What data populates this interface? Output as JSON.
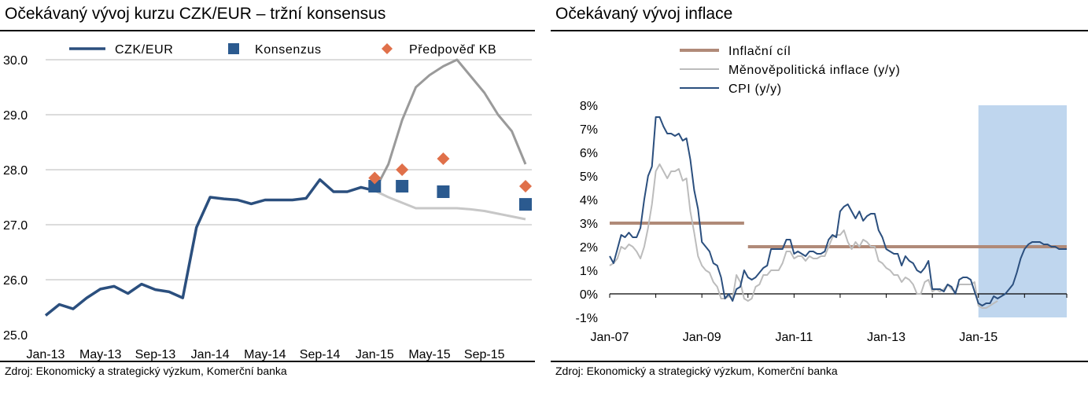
{
  "chart_data": [
    {
      "type": "line",
      "title": "Očekávaný vývoj kurzu CZK/EUR – tržní konsensus",
      "source": "Zdroj: Ekonomický a strategický výzkum, Komerční banka",
      "x_tick_labels": [
        "Jan-13",
        "May-13",
        "Sep-13",
        "Jan-14",
        "May-14",
        "Sep-14",
        "Jan-15",
        "May-15",
        "Sep-15"
      ],
      "x_tick_months": [
        "2013-01",
        "2013-05",
        "2013-09",
        "2014-01",
        "2014-05",
        "2014-09",
        "2015-01",
        "2015-05",
        "2015-09"
      ],
      "xlim": [
        "2013-01",
        "2015-12"
      ],
      "ylim": [
        25.0,
        30.0
      ],
      "y_ticks": [
        "25.0",
        "26.0",
        "27.0",
        "28.0",
        "29.0",
        "30.0"
      ],
      "grid": "horizontal",
      "legend_position": "top",
      "series": [
        {
          "name": "CZK/EUR",
          "type": "line",
          "color": "#2b4f7e",
          "x": [
            "2013-01",
            "2013-02",
            "2013-03",
            "2013-04",
            "2013-05",
            "2013-06",
            "2013-07",
            "2013-08",
            "2013-09",
            "2013-10",
            "2013-11",
            "2013-12",
            "2014-01",
            "2014-02",
            "2014-03",
            "2014-04",
            "2014-05",
            "2014-06",
            "2014-07",
            "2014-08",
            "2014-09",
            "2014-10",
            "2014-11",
            "2014-12",
            "2015-01"
          ],
          "y": [
            25.35,
            25.55,
            25.47,
            25.67,
            25.83,
            25.88,
            25.75,
            25.92,
            25.82,
            25.78,
            25.67,
            26.95,
            27.5,
            27.47,
            27.45,
            27.38,
            27.45,
            27.45,
            27.45,
            27.48,
            27.82,
            27.6,
            27.6,
            27.68,
            27.62
          ]
        },
        {
          "name": "",
          "type": "line",
          "color": "#9a9a9a",
          "x": [
            "2015-01",
            "2015-02",
            "2015-03",
            "2015-04",
            "2015-05",
            "2015-06",
            "2015-07",
            "2015-08",
            "2015-09",
            "2015-10",
            "2015-11",
            "2015-12"
          ],
          "y": [
            27.62,
            28.1,
            28.9,
            29.5,
            29.72,
            29.88,
            30.0,
            29.7,
            29.4,
            29.0,
            28.7,
            28.1
          ]
        },
        {
          "name": "",
          "type": "line",
          "color": "#c7c7c7",
          "x": [
            "2015-01",
            "2015-02",
            "2015-03",
            "2015-04",
            "2015-05",
            "2015-06",
            "2015-07",
            "2015-08",
            "2015-09",
            "2015-10",
            "2015-11",
            "2015-12"
          ],
          "y": [
            27.62,
            27.5,
            27.4,
            27.3,
            27.3,
            27.3,
            27.3,
            27.28,
            27.25,
            27.2,
            27.15,
            27.1
          ]
        },
        {
          "name": "Konsenzus",
          "type": "scatter",
          "marker": "square",
          "color": "#2b5a8f",
          "x": [
            "2015-01",
            "2015-03",
            "2015-06",
            "2015-12"
          ],
          "y": [
            27.7,
            27.7,
            27.6,
            27.37
          ]
        },
        {
          "name": "Předpověď KB",
          "type": "scatter",
          "marker": "diamond",
          "color": "#e0704a",
          "x": [
            "2015-01",
            "2015-03",
            "2015-06",
            "2015-12"
          ],
          "y": [
            27.85,
            28.0,
            28.2,
            27.7
          ]
        }
      ]
    },
    {
      "type": "line",
      "title": "Očekávaný vývoj inflace",
      "source": "Zdroj: Ekonomický a strategický výzkum, Komerční banka",
      "x_tick_labels": [
        "Jan-07",
        "Jan-09",
        "Jan-11",
        "Jan-13",
        "Jan-15"
      ],
      "x_tick_months": [
        "2007-01",
        "2009-01",
        "2011-01",
        "2013-01",
        "2015-01"
      ],
      "xlim": [
        "2007-01",
        "2016-12"
      ],
      "ylim": [
        -1,
        8
      ],
      "y_ticks": [
        "-1%",
        "0%",
        "1%",
        "2%",
        "3%",
        "4%",
        "5%",
        "6%",
        "7%",
        "8%"
      ],
      "shaded_region": {
        "from": "2015-01",
        "to": "2016-12",
        "color": "#bfd6ee"
      },
      "legend_position": "top-left",
      "series": [
        {
          "name": "Inflační cíl",
          "type": "step",
          "color": "#b08a78",
          "segments": [
            {
              "x": [
                "2007-01",
                "2009-12"
              ],
              "y": [
                3,
                3
              ]
            },
            {
              "x": [
                "2010-01",
                "2016-12"
              ],
              "y": [
                2,
                2
              ]
            }
          ]
        },
        {
          "name": "Měnověpolitická inflace (y/y)",
          "type": "line",
          "color": "#bcbcbc",
          "x": [
            "2007-01",
            "2007-02",
            "2007-03",
            "2007-04",
            "2007-05",
            "2007-06",
            "2007-07",
            "2007-08",
            "2007-09",
            "2007-10",
            "2007-11",
            "2007-12",
            "2008-01",
            "2008-02",
            "2008-03",
            "2008-04",
            "2008-05",
            "2008-06",
            "2008-07",
            "2008-08",
            "2008-09",
            "2008-10",
            "2008-11",
            "2008-12",
            "2009-01",
            "2009-02",
            "2009-03",
            "2009-04",
            "2009-05",
            "2009-06",
            "2009-07",
            "2009-08",
            "2009-09",
            "2009-10",
            "2009-11",
            "2009-12",
            "2010-01",
            "2010-02",
            "2010-03",
            "2010-04",
            "2010-05",
            "2010-06",
            "2010-07",
            "2010-08",
            "2010-09",
            "2010-10",
            "2010-11",
            "2010-12",
            "2011-01",
            "2011-02",
            "2011-03",
            "2011-04",
            "2011-05",
            "2011-06",
            "2011-07",
            "2011-08",
            "2011-09",
            "2011-10",
            "2011-11",
            "2011-12",
            "2012-01",
            "2012-02",
            "2012-03",
            "2012-04",
            "2012-05",
            "2012-06",
            "2012-07",
            "2012-08",
            "2012-09",
            "2012-10",
            "2012-11",
            "2012-12",
            "2013-01",
            "2013-02",
            "2013-03",
            "2013-04",
            "2013-05",
            "2013-06",
            "2013-07",
            "2013-08",
            "2013-09",
            "2013-10",
            "2013-11",
            "2013-12",
            "2014-01",
            "2014-02",
            "2014-03",
            "2014-04",
            "2014-05",
            "2014-06",
            "2014-07",
            "2014-08",
            "2014-09",
            "2014-10",
            "2014-11",
            "2014-12",
            "2015-01",
            "2015-02",
            "2015-03",
            "2015-04",
            "2015-05",
            "2015-06"
          ],
          "y": [
            1.2,
            1.3,
            1.5,
            2.0,
            1.9,
            2.1,
            2.0,
            1.8,
            1.5,
            2.0,
            2.8,
            3.8,
            5.2,
            5.5,
            5.2,
            4.9,
            5.2,
            5.2,
            5.3,
            4.8,
            4.9,
            3.5,
            2.6,
            1.6,
            1.2,
            1.0,
            0.9,
            0.5,
            0.3,
            -0.2,
            -0.2,
            -0.1,
            -0.2,
            0.8,
            0.5,
            -0.2,
            -0.3,
            -0.2,
            0.3,
            0.4,
            0.8,
            0.8,
            1.0,
            1.0,
            1.0,
            1.3,
            1.8,
            1.8,
            1.5,
            1.6,
            1.6,
            1.4,
            1.6,
            1.5,
            1.5,
            1.6,
            1.6,
            2.0,
            2.4,
            2.5,
            2.5,
            2.7,
            2.2,
            1.9,
            2.2,
            2.0,
            2.3,
            2.2,
            2.0,
            2.0,
            1.4,
            1.3,
            1.1,
            1.0,
            0.8,
            0.8,
            0.5,
            0.7,
            0.6,
            0.4,
            0.0,
            0.0,
            0.5,
            0.6,
            0.1,
            0.2,
            0.1,
            0.2,
            0.4,
            0.2,
            0.1,
            0.4,
            0.4,
            0.4,
            0.4,
            0.5,
            -0.5,
            -0.6,
            -0.6,
            -0.5,
            -0.4,
            -0.3
          ]
        },
        {
          "name": "CPI (y/y)",
          "type": "line",
          "color": "#2b4f7e",
          "x": [
            "2007-01",
            "2007-02",
            "2007-03",
            "2007-04",
            "2007-05",
            "2007-06",
            "2007-07",
            "2007-08",
            "2007-09",
            "2007-10",
            "2007-11",
            "2007-12",
            "2008-01",
            "2008-02",
            "2008-03",
            "2008-04",
            "2008-05",
            "2008-06",
            "2008-07",
            "2008-08",
            "2008-09",
            "2008-10",
            "2008-11",
            "2008-12",
            "2009-01",
            "2009-02",
            "2009-03",
            "2009-04",
            "2009-05",
            "2009-06",
            "2009-07",
            "2009-08",
            "2009-09",
            "2009-10",
            "2009-11",
            "2009-12",
            "2010-01",
            "2010-02",
            "2010-03",
            "2010-04",
            "2010-05",
            "2010-06",
            "2010-07",
            "2010-08",
            "2010-09",
            "2010-10",
            "2010-11",
            "2010-12",
            "2011-01",
            "2011-02",
            "2011-03",
            "2011-04",
            "2011-05",
            "2011-06",
            "2011-07",
            "2011-08",
            "2011-09",
            "2011-10",
            "2011-11",
            "2011-12",
            "2012-01",
            "2012-02",
            "2012-03",
            "2012-04",
            "2012-05",
            "2012-06",
            "2012-07",
            "2012-08",
            "2012-09",
            "2012-10",
            "2012-11",
            "2012-12",
            "2013-01",
            "2013-02",
            "2013-03",
            "2013-04",
            "2013-05",
            "2013-06",
            "2013-07",
            "2013-08",
            "2013-09",
            "2013-10",
            "2013-11",
            "2013-12",
            "2014-01",
            "2014-02",
            "2014-03",
            "2014-04",
            "2014-05",
            "2014-06",
            "2014-07",
            "2014-08",
            "2014-09",
            "2014-10",
            "2014-11",
            "2014-12",
            "2015-01",
            "2015-02",
            "2015-03",
            "2015-04",
            "2015-05",
            "2015-06",
            "2015-07",
            "2015-08",
            "2015-09",
            "2015-10",
            "2015-11",
            "2015-12",
            "2016-01",
            "2016-02",
            "2016-03",
            "2016-04",
            "2016-05",
            "2016-06",
            "2016-07",
            "2016-08",
            "2016-09",
            "2016-10",
            "2016-11",
            "2016-12"
          ],
          "y": [
            1.6,
            1.3,
            1.9,
            2.5,
            2.4,
            2.6,
            2.4,
            2.4,
            2.8,
            4.0,
            5.0,
            5.4,
            7.5,
            7.5,
            7.1,
            6.8,
            6.8,
            6.7,
            6.8,
            6.5,
            6.6,
            5.7,
            4.4,
            3.6,
            2.2,
            2.0,
            1.8,
            1.3,
            1.2,
            0.7,
            -0.2,
            0.0,
            -0.3,
            0.2,
            0.3,
            1.0,
            0.7,
            0.6,
            0.7,
            0.9,
            1.1,
            1.2,
            1.9,
            1.9,
            1.9,
            1.9,
            2.3,
            2.3,
            1.7,
            1.8,
            1.7,
            1.6,
            1.8,
            1.8,
            1.7,
            1.7,
            1.8,
            2.3,
            2.5,
            2.4,
            3.5,
            3.7,
            3.8,
            3.5,
            3.2,
            3.5,
            3.1,
            3.3,
            3.4,
            3.4,
            2.7,
            2.4,
            1.9,
            1.8,
            1.7,
            1.7,
            1.2,
            1.6,
            1.4,
            1.3,
            1.0,
            0.9,
            1.1,
            1.4,
            0.2,
            0.2,
            0.2,
            0.1,
            0.4,
            0.3,
            0.0,
            0.6,
            0.7,
            0.7,
            0.6,
            0.1,
            -0.4,
            -0.5,
            -0.4,
            -0.4,
            -0.1,
            -0.2,
            -0.1,
            0.0,
            0.2,
            0.4,
            0.9,
            1.5,
            1.9,
            2.1,
            2.2,
            2.2,
            2.2,
            2.1,
            2.1,
            2.0,
            2.0,
            1.9,
            1.9,
            1.9
          ]
        }
      ]
    }
  ]
}
